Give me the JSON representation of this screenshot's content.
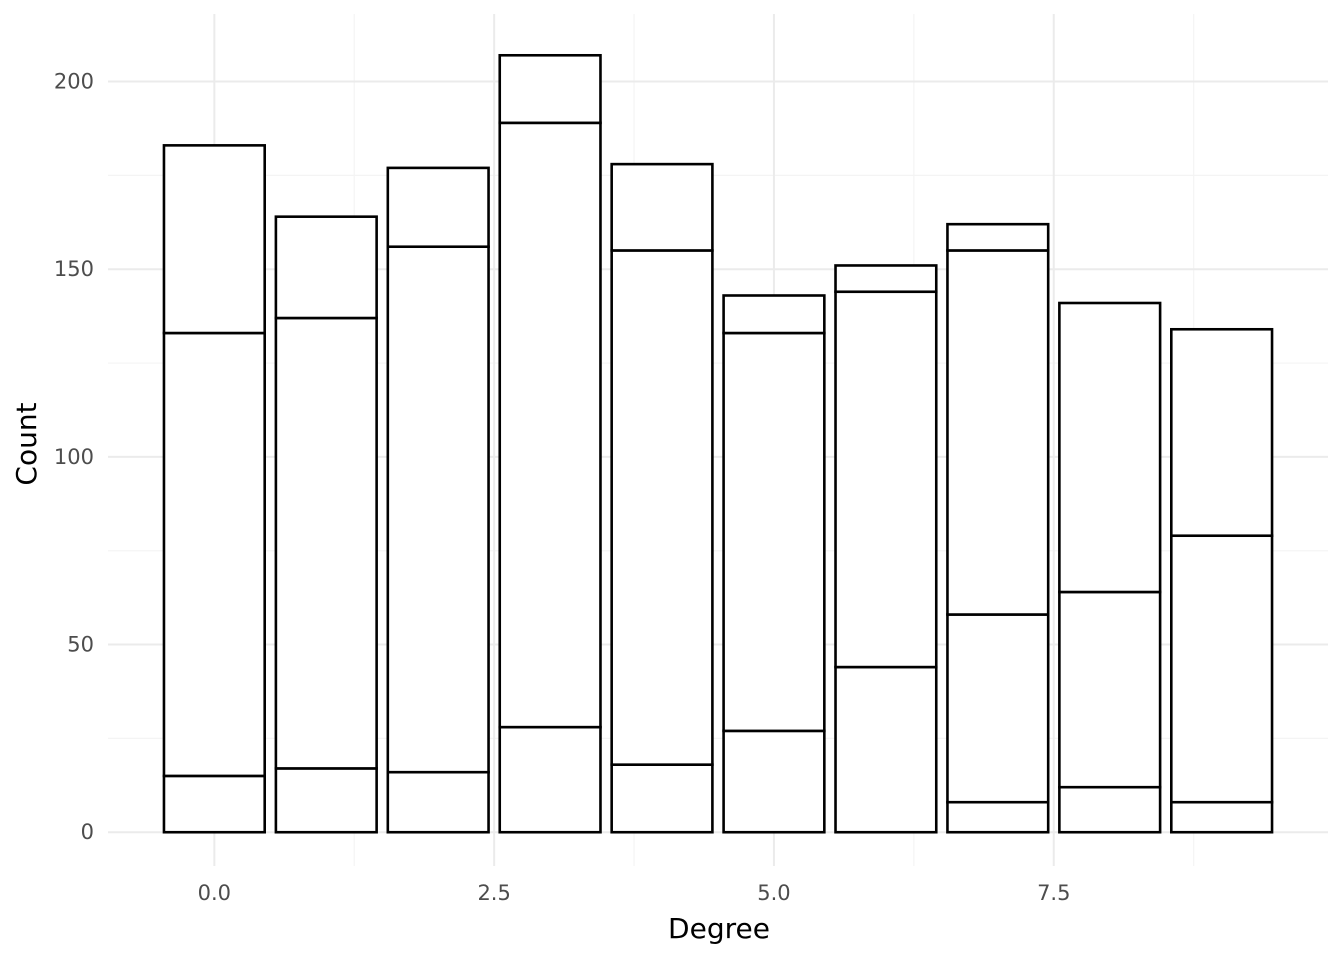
{
  "chart_data": {
    "type": "bar",
    "stacked": true,
    "xlabel": "Degree",
    "ylabel": "Count",
    "x": [
      0,
      1,
      2,
      3,
      4,
      5,
      6,
      7,
      8,
      9
    ],
    "x_ticks": [
      0.0,
      2.5,
      5.0,
      7.5
    ],
    "x_tick_labels": [
      "0.0",
      "2.5",
      "5.0",
      "7.5"
    ],
    "y_ticks": [
      0,
      50,
      100,
      150,
      200
    ],
    "y_tick_labels": [
      "0",
      "50",
      "100",
      "150",
      "200"
    ],
    "xlim": [
      -0.95,
      9.95
    ],
    "ylim": [
      -9,
      218
    ],
    "segment_boundaries": [
      [
        0,
        15,
        133,
        183
      ],
      [
        0,
        17,
        137,
        164
      ],
      [
        0,
        16,
        156,
        177
      ],
      [
        0,
        28,
        189,
        207
      ],
      [
        0,
        18,
        155,
        178
      ],
      [
        0,
        27,
        133,
        143
      ],
      [
        0,
        44,
        144,
        151
      ],
      [
        0,
        8,
        58,
        155,
        162
      ],
      [
        0,
        12,
        64,
        141
      ],
      [
        0,
        8,
        79,
        134
      ]
    ],
    "bar_fill": "#ffffff",
    "bar_stroke": "#000000",
    "grid": true,
    "legend": "none"
  }
}
